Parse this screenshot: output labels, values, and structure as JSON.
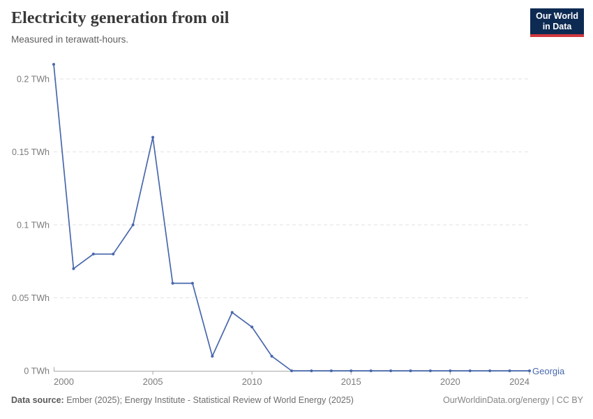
{
  "header": {
    "title": "Electricity generation from oil",
    "subtitle": "Measured in terawatt-hours.",
    "logo": {
      "line1": "Our World",
      "line2": "in Data",
      "bg_color": "#0d2a52",
      "accent_color": "#d0383e"
    }
  },
  "chart_data": {
    "type": "line",
    "title": "Electricity generation from oil",
    "unit": "TWh",
    "x": [
      2000,
      2001,
      2002,
      2003,
      2004,
      2005,
      2006,
      2007,
      2008,
      2009,
      2010,
      2011,
      2012,
      2013,
      2014,
      2015,
      2016,
      2017,
      2018,
      2019,
      2020,
      2021,
      2022,
      2023,
      2024
    ],
    "series": [
      {
        "name": "Georgia",
        "color": "#4868ac",
        "values": [
          0.21,
          0.07,
          0.08,
          0.08,
          0.1,
          0.16,
          0.06,
          0.06,
          0.01,
          0.04,
          0.03,
          0.01,
          0,
          0,
          0,
          0,
          0,
          0,
          0,
          0,
          0,
          0,
          0,
          0,
          0
        ]
      }
    ],
    "xticks": [
      2000,
      2005,
      2010,
      2015,
      2020,
      2024
    ],
    "yticks": [
      {
        "value": 0,
        "label": "0 TWh"
      },
      {
        "value": 0.05,
        "label": "0.05 TWh"
      },
      {
        "value": 0.1,
        "label": "0.1 TWh"
      },
      {
        "value": 0.15,
        "label": "0.15 TWh"
      },
      {
        "value": 0.2,
        "label": "0.2 TWh"
      }
    ],
    "xlim": [
      2000,
      2024
    ],
    "ylim": [
      0,
      0.21
    ],
    "grid": "horizontal-dashed",
    "legend_position": "end-of-line"
  },
  "footer": {
    "source_label": "Data source:",
    "source_text": " Ember (2025); Energy Institute - Statistical Review of World Energy (2025)",
    "credit": "OurWorldinData.org/energy | CC BY"
  }
}
